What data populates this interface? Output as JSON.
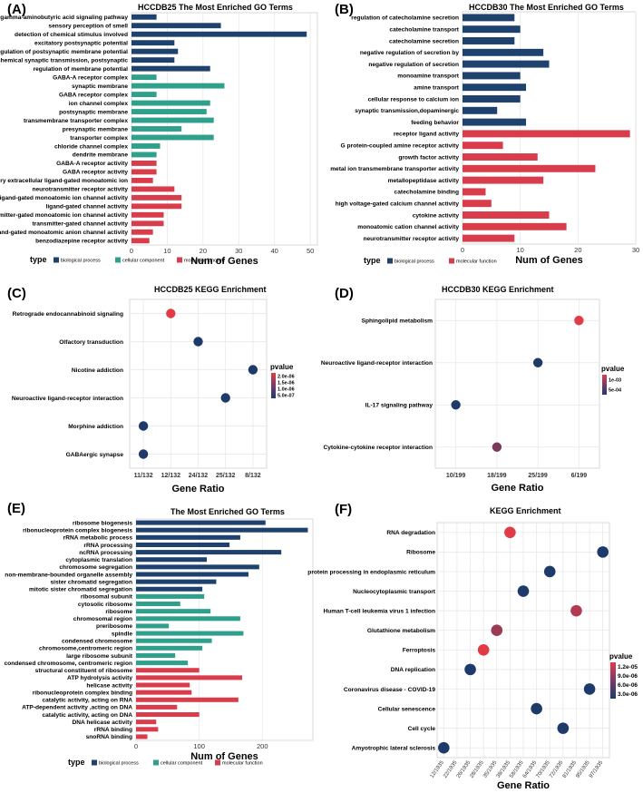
{
  "colors": {
    "biological_process": "#1e426d",
    "cellular_component": "#2ea08c",
    "molecular_function": "#d93d4c"
  },
  "legend": {
    "type_label": "type",
    "biological_process": "biological process",
    "cellular_component": "cellular component",
    "molecular_function": "molecular function"
  },
  "chart_data": [
    {
      "panel": "(A)",
      "type": "bar",
      "orientation": "horizontal",
      "title": "HCCDB25 The Most Enriched GO Terms",
      "xlabel": "Num of Genes",
      "xlim": [
        0,
        52
      ],
      "xticks": [
        0,
        10,
        20,
        30,
        40,
        50
      ],
      "categories": [
        "gamma-aminobutyric acid signaling pathway",
        "sensory perception of smell",
        "detection of chemical stimulus involved",
        "excitatory postsynaptic potential",
        "regulation of postsynaptic membrane potential",
        "chemical synaptic transmission, postsynaptic",
        "regulation of membrane potential",
        "GABA-A receptor complex",
        "synaptic membrane",
        "GABA receptor complex",
        "ion channel complex",
        "postsynaptic membrane",
        "transmembrane transporter complex",
        "presynaptic membrane",
        "transporter complex",
        "chloride channel complex",
        "dendrite membrane",
        "GABA-A receptor activity",
        "GABA receptor activity",
        "inhibitory extracellular ligand-gated monoatomic ion",
        "neurotransmitter receptor activity",
        "ligand-gated monoatomic ion channel activity",
        "ligand-gated channel activity",
        "transmitter-gated monoatomic ion channel activity",
        "transmitter-gated channel activity",
        "ligand-gated monoatomic anion channel activity",
        "benzodiazepine receptor activity"
      ],
      "values": [
        7,
        25,
        49,
        12,
        13,
        12,
        22,
        7,
        26,
        7,
        22,
        21,
        23,
        14,
        23,
        8,
        7,
        7,
        7,
        6,
        12,
        14,
        14,
        9,
        9,
        6,
        5
      ],
      "groups": [
        "bp",
        "bp",
        "bp",
        "bp",
        "bp",
        "bp",
        "bp",
        "cc",
        "cc",
        "cc",
        "cc",
        "cc",
        "cc",
        "cc",
        "cc",
        "cc",
        "cc",
        "mf",
        "mf",
        "mf",
        "mf",
        "mf",
        "mf",
        "mf",
        "mf",
        "mf",
        "mf"
      ]
    },
    {
      "panel": "(B)",
      "type": "bar",
      "orientation": "horizontal",
      "title": "HCCDB30 The Most Enriched GO Terms",
      "xlabel": "Num of Genes",
      "xlim": [
        0,
        30
      ],
      "xticks": [
        0,
        10,
        20,
        30
      ],
      "categories": [
        "regulation of catecholamine secretion",
        "catecholamine transport",
        "catecholamine secretion",
        "negative regulation of secretion by",
        "negative regulation of secretion",
        "monoamine transport",
        "amine transport",
        "cellular response to calcium ion",
        "synaptic transmission,dopaminergic",
        "feeding behavior",
        "receptor ligand activity",
        "G protein-coupled amine receptor activity",
        "growth factor activity",
        "metal ion transmembrane transporter activity",
        "metallopeptidase activity",
        "catecholamine binding",
        "high voltage-gated calcium channel activity",
        "cytokine activity",
        "monoatomic cation channel activity",
        "neurotransmitter receptor activity"
      ],
      "values": [
        9,
        10,
        9,
        14,
        15,
        10,
        11,
        10,
        6,
        11,
        29,
        7,
        13,
        23,
        14,
        4,
        5,
        15,
        18,
        9
      ],
      "groups": [
        "bp",
        "bp",
        "bp",
        "bp",
        "bp",
        "bp",
        "bp",
        "bp",
        "bp",
        "bp",
        "mf",
        "mf",
        "mf",
        "mf",
        "mf",
        "mf",
        "mf",
        "mf",
        "mf",
        "mf"
      ]
    },
    {
      "panel": "(C)",
      "type": "scatter",
      "title": "HCCDB25 KEGG Enrichment",
      "xlabel": "Gene Ratio",
      "xticks": [
        "11/132",
        "12/132",
        "24/132",
        "25/132",
        "8/132"
      ],
      "categories": [
        "Retrograde endocannabinoid signaling",
        "Olfactory transduction",
        "Nicotine addiction",
        "Neuroactive ligand-receptor interaction",
        "Morphine addiction",
        "GABAergic synapse"
      ],
      "points": [
        {
          "x": "12/132",
          "pvalue": 2.1e-06
        },
        {
          "x": "24/132",
          "pvalue": 5e-07
        },
        {
          "x": "8/132",
          "pvalue": 5e-07
        },
        {
          "x": "25/132",
          "pvalue": 5e-07
        },
        {
          "x": "11/132",
          "pvalue": 5e-07
        },
        {
          "x": "11/132",
          "pvalue": 5e-07
        }
      ],
      "legend_title": "pvalue",
      "legend_range": [
        5e-07,
        2.1e-06
      ],
      "legend_ticks": [
        "2.0e-06",
        "1.5e-06",
        "1.0e-06",
        "5.0e-07"
      ]
    },
    {
      "panel": "(D)",
      "type": "scatter",
      "title": "HCCDB30 KEGG Enrichment",
      "xlabel": "Gene Ratio",
      "xticks": [
        "10/199",
        "18/199",
        "25/199",
        "6/199"
      ],
      "categories": [
        "Sphingolipid metabolism",
        "Neuroactive ligand-receptor interaction",
        "IL-17 signaling pathway",
        "Cytokine-cytokine receptor interaction"
      ],
      "points": [
        {
          "x": "6/199",
          "pvalue": 0.0011
        },
        {
          "x": "25/199",
          "pvalue": 0.00025
        },
        {
          "x": "10/199",
          "pvalue": 0.00025
        },
        {
          "x": "18/199",
          "pvalue": 0.0005
        }
      ],
      "legend_title": "pvalue",
      "legend_range": [
        0.00025,
        0.0011
      ],
      "legend_ticks": [
        "1e-03",
        "5e-04"
      ]
    },
    {
      "panel": "(E)",
      "type": "bar",
      "orientation": "horizontal",
      "title": "The Most Enriched GO Terms",
      "xlabel": "Num of Genes",
      "xlim": [
        0,
        280
      ],
      "xticks": [
        0,
        100,
        200
      ],
      "categories": [
        "ribosome biogenesis",
        "ribonucleoprotein complex biogenesis",
        "rRNA metabolic process",
        "rRNA processing",
        "ncRNA processing",
        "cytoplasmic translation",
        "chromosome segregation",
        "non-membrane-bounded organelle assembly",
        "sister chromatid segregation",
        "mitotic sister chromatid segregation",
        "ribosomal subunit",
        "cytosolic ribosome",
        "ribosome",
        "chromosomal region",
        "preribosome",
        "spindle",
        "condensed chromosome",
        "chromosome,centromeric region",
        "large ribosome subunit",
        "condensed chromosome, centromeric region",
        "structural constituent of ribosome",
        "ATP hydrolysis activity",
        "helicase activity",
        "ribonucleoprotein complex binding",
        "catalytic activity, acting on RNA",
        "ATP-dependent activity ,acting on DNA",
        "catalytic activity, acting on DNA",
        "DNA helicase activity",
        "rRNA binding",
        "snoRNA binding"
      ],
      "values": [
        205,
        272,
        165,
        148,
        230,
        112,
        195,
        178,
        127,
        105,
        108,
        70,
        118,
        165,
        52,
        170,
        120,
        105,
        62,
        82,
        100,
        168,
        85,
        88,
        162,
        65,
        100,
        32,
        35,
        18
      ],
      "groups": [
        "bp",
        "bp",
        "bp",
        "bp",
        "bp",
        "bp",
        "bp",
        "bp",
        "bp",
        "bp",
        "cc",
        "cc",
        "cc",
        "cc",
        "cc",
        "cc",
        "cc",
        "cc",
        "cc",
        "cc",
        "mf",
        "mf",
        "mf",
        "mf",
        "mf",
        "mf",
        "mf",
        "mf",
        "mf",
        "mf"
      ]
    },
    {
      "panel": "(F)",
      "type": "scatter",
      "title": "KEGG Enrichment",
      "xlabel": "Gene Ratio",
      "xticks": [
        "12/1935",
        "22/1935",
        "26/1935",
        "28/1935",
        "35/1935",
        "38/1935",
        "58/1935",
        "64/1935",
        "70/1935",
        "72/1935",
        "81/1935",
        "95/1935",
        "97/1935"
      ],
      "categories": [
        "RNA degradation",
        "Ribosome",
        "protein processing in endoplasmic reticulum",
        "Nucleocytoplasmic transport",
        "Human T-cell leukemia virus 1 infection",
        "Glutathione metabolism",
        "Ferroptosis",
        "DNA replication",
        "Coronavirus disease - COVID-19",
        "Cellular senescence",
        "Cell cycle",
        "Amyotrophic lateral sclerosis"
      ],
      "highlight": "Ferroptosis",
      "highlight_color": "#d93d4c",
      "points": [
        {
          "x": "38/1935",
          "pvalue": 1.25e-05
        },
        {
          "x": "97/1935",
          "pvalue": 2e-06
        },
        {
          "x": "70/1935",
          "pvalue": 2e-06
        },
        {
          "x": "58/1935",
          "pvalue": 2e-06
        },
        {
          "x": "81/1935",
          "pvalue": 8e-06
        },
        {
          "x": "35/1935",
          "pvalue": 6.5e-06
        },
        {
          "x": "28/1935",
          "pvalue": 1.25e-05
        },
        {
          "x": "26/1935",
          "pvalue": 2e-06
        },
        {
          "x": "95/1935",
          "pvalue": 2e-06
        },
        {
          "x": "64/1935",
          "pvalue": 2e-06
        },
        {
          "x": "72/1935",
          "pvalue": 2e-06
        },
        {
          "x": "12/1935",
          "pvalue": 2e-06
        }
      ],
      "legend_title": "pvalue",
      "legend_range": [
        2e-06,
        1.25e-05
      ],
      "legend_ticks": [
        "1.2e-05",
        "9.0e-06",
        "6.0e-06",
        "3.0e-06"
      ]
    }
  ]
}
